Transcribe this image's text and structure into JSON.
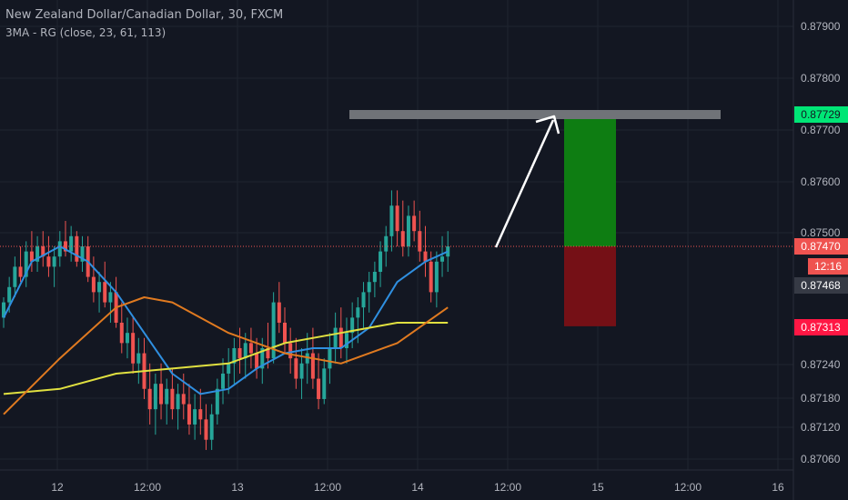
{
  "header": {
    "title": "New Zealand Dollar/Canadian Dollar, 30, FXCM",
    "indicator": "3MA - RG (close, 23, 61, 113)"
  },
  "colors": {
    "background": "#131722",
    "grid": "#1f2430",
    "axis_text": "#b2b5be",
    "candle_up": "#26a69a",
    "candle_down": "#ef5350",
    "ma_fast": "#2f8fe0",
    "ma_mid": "#e0e040",
    "ma_slow": "#e07a20",
    "target_badge": "#00e676",
    "stop_badge": "#ff1744",
    "current_badge": "#ef5350",
    "other_badge": "#363a45",
    "profit_zone": "#0e7d12",
    "loss_zone": "#751016",
    "target_line": "#707378",
    "arrow": "#ffffff"
  },
  "chart_data": {
    "type": "candlestick",
    "symbol": "NZDCAD",
    "timeframe": "30",
    "source": "FXCM",
    "x_ticks": [
      "12",
      "12:00",
      "13",
      "12:00",
      "14",
      "12:00",
      "15",
      "12:00",
      "16"
    ],
    "y_ticks": [
      "0.87900",
      "0.87800",
      "0.87700",
      "0.87600",
      "0.87500",
      "0.87240",
      "0.87180",
      "0.87120",
      "0.87060"
    ],
    "y_range": [
      0.8703,
      0.8797
    ],
    "price_labels": [
      {
        "role": "target",
        "value": "0.87729"
      },
      {
        "role": "current",
        "value": "0.87470"
      },
      {
        "role": "countdown",
        "value": "12:16"
      },
      {
        "role": "other",
        "value": "0.87468"
      },
      {
        "role": "stop",
        "value": "0.87313"
      }
    ],
    "candles": [
      [
        0.8733,
        0.8737,
        0.8731,
        0.8736
      ],
      [
        0.8736,
        0.8741,
        0.8734,
        0.8739
      ],
      [
        0.8739,
        0.8745,
        0.8737,
        0.8743
      ],
      [
        0.8743,
        0.8747,
        0.874,
        0.8741
      ],
      [
        0.8741,
        0.8748,
        0.8739,
        0.8746
      ],
      [
        0.8746,
        0.875,
        0.8742,
        0.8744
      ],
      [
        0.8744,
        0.8749,
        0.8742,
        0.8747
      ],
      [
        0.8747,
        0.875,
        0.8743,
        0.8745
      ],
      [
        0.8745,
        0.8749,
        0.8741,
        0.8743
      ],
      [
        0.8743,
        0.8747,
        0.8739,
        0.8745
      ],
      [
        0.8745,
        0.875,
        0.8743,
        0.8748
      ],
      [
        0.8748,
        0.8752,
        0.8745,
        0.8746
      ],
      [
        0.8746,
        0.8751,
        0.8744,
        0.8749
      ],
      [
        0.8749,
        0.875,
        0.8743,
        0.8744
      ],
      [
        0.8744,
        0.8749,
        0.8742,
        0.8747
      ],
      [
        0.8747,
        0.8749,
        0.874,
        0.8741
      ],
      [
        0.8741,
        0.8745,
        0.8736,
        0.8738
      ],
      [
        0.8738,
        0.8742,
        0.8734,
        0.874
      ],
      [
        0.874,
        0.8744,
        0.8735,
        0.8736
      ],
      [
        0.8736,
        0.874,
        0.8732,
        0.8738
      ],
      [
        0.8738,
        0.8741,
        0.8731,
        0.8732
      ],
      [
        0.8732,
        0.8736,
        0.8726,
        0.8728
      ],
      [
        0.8728,
        0.8733,
        0.8725,
        0.873
      ],
      [
        0.873,
        0.8733,
        0.8722,
        0.8724
      ],
      [
        0.8724,
        0.8729,
        0.872,
        0.8726
      ],
      [
        0.8726,
        0.8729,
        0.8717,
        0.8719
      ],
      [
        0.8719,
        0.8724,
        0.8712,
        0.8715
      ],
      [
        0.8715,
        0.8722,
        0.871,
        0.872
      ],
      [
        0.872,
        0.8724,
        0.8713,
        0.8716
      ],
      [
        0.8716,
        0.8721,
        0.8712,
        0.8719
      ],
      [
        0.8719,
        0.8723,
        0.8713,
        0.8715
      ],
      [
        0.8715,
        0.872,
        0.8711,
        0.8718
      ],
      [
        0.8718,
        0.8722,
        0.8713,
        0.8716
      ],
      [
        0.8716,
        0.872,
        0.871,
        0.8712
      ],
      [
        0.8712,
        0.8718,
        0.8709,
        0.8715
      ],
      [
        0.8715,
        0.8719,
        0.871,
        0.8713
      ],
      [
        0.8713,
        0.8716,
        0.8707,
        0.8709
      ],
      [
        0.8709,
        0.8716,
        0.8707,
        0.8714
      ],
      [
        0.8714,
        0.8721,
        0.8712,
        0.8719
      ],
      [
        0.8719,
        0.8725,
        0.8716,
        0.8722
      ],
      [
        0.8722,
        0.8727,
        0.8718,
        0.8724
      ],
      [
        0.8724,
        0.8729,
        0.872,
        0.8727
      ],
      [
        0.8727,
        0.8731,
        0.8722,
        0.8725
      ],
      [
        0.8725,
        0.873,
        0.8721,
        0.8728
      ],
      [
        0.8728,
        0.8731,
        0.8723,
        0.8726
      ],
      [
        0.8726,
        0.8729,
        0.8721,
        0.8723
      ],
      [
        0.8723,
        0.8729,
        0.872,
        0.8727
      ],
      [
        0.8727,
        0.8732,
        0.8723,
        0.8725
      ],
      [
        0.8725,
        0.8738,
        0.8724,
        0.8736
      ],
      [
        0.8736,
        0.874,
        0.873,
        0.8732
      ],
      [
        0.8732,
        0.8735,
        0.8726,
        0.8728
      ],
      [
        0.8728,
        0.8731,
        0.8722,
        0.8725
      ],
      [
        0.8725,
        0.8729,
        0.8719,
        0.8721
      ],
      [
        0.8721,
        0.8727,
        0.8717,
        0.8724
      ],
      [
        0.8724,
        0.873,
        0.872,
        0.8726
      ],
      [
        0.8726,
        0.8731,
        0.8719,
        0.8721
      ],
      [
        0.8721,
        0.8726,
        0.8715,
        0.8717
      ],
      [
        0.8717,
        0.8725,
        0.8716,
        0.8723
      ],
      [
        0.8723,
        0.873,
        0.872,
        0.8727
      ],
      [
        0.8727,
        0.8734,
        0.8724,
        0.8731
      ],
      [
        0.8731,
        0.8735,
        0.8725,
        0.8727
      ],
      [
        0.8727,
        0.8733,
        0.8724,
        0.873
      ],
      [
        0.873,
        0.8736,
        0.8727,
        0.8733
      ],
      [
        0.8733,
        0.8737,
        0.8728,
        0.8735
      ],
      [
        0.8735,
        0.874,
        0.8731,
        0.8738
      ],
      [
        0.8738,
        0.8742,
        0.8734,
        0.874
      ],
      [
        0.874,
        0.8744,
        0.8737,
        0.8742
      ],
      [
        0.8742,
        0.8748,
        0.8739,
        0.8746
      ],
      [
        0.8746,
        0.8751,
        0.8743,
        0.8749
      ],
      [
        0.8749,
        0.8758,
        0.8746,
        0.8755
      ],
      [
        0.8755,
        0.8758,
        0.8747,
        0.875
      ],
      [
        0.875,
        0.8756,
        0.8745,
        0.8747
      ],
      [
        0.8747,
        0.8755,
        0.8745,
        0.8753
      ],
      [
        0.8753,
        0.8756,
        0.8748,
        0.875
      ],
      [
        0.875,
        0.8754,
        0.8744,
        0.8746
      ],
      [
        0.8746,
        0.8751,
        0.8741,
        0.8744
      ],
      [
        0.8744,
        0.8746,
        0.8736,
        0.8738
      ],
      [
        0.8738,
        0.8746,
        0.8735,
        0.8744
      ],
      [
        0.8744,
        0.8749,
        0.8741,
        0.8745
      ],
      [
        0.8745,
        0.875,
        0.8742,
        0.8747
      ]
    ],
    "moving_averages": [
      {
        "name": "MA 23",
        "color": "#2f8fe0",
        "points": [
          [
            0,
            0.8733
          ],
          [
            5,
            0.8744
          ],
          [
            10,
            0.8747
          ],
          [
            15,
            0.8744
          ],
          [
            20,
            0.8738
          ],
          [
            25,
            0.873
          ],
          [
            30,
            0.8722
          ],
          [
            35,
            0.8718
          ],
          [
            40,
            0.8719
          ],
          [
            45,
            0.8723
          ],
          [
            50,
            0.8726
          ],
          [
            55,
            0.8727
          ],
          [
            60,
            0.8727
          ],
          [
            65,
            0.8731
          ],
          [
            70,
            0.874
          ],
          [
            75,
            0.8744
          ],
          [
            79,
            0.8746
          ]
        ]
      },
      {
        "name": "MA 61",
        "color": "#e0e040",
        "points": [
          [
            0,
            0.8718
          ],
          [
            10,
            0.8719
          ],
          [
            20,
            0.8722
          ],
          [
            30,
            0.8723
          ],
          [
            40,
            0.8724
          ],
          [
            50,
            0.8728
          ],
          [
            60,
            0.873
          ],
          [
            70,
            0.8732
          ],
          [
            79,
            0.8732
          ]
        ]
      },
      {
        "name": "MA 113",
        "color": "#e07a20",
        "points": [
          [
            0,
            0.8714
          ],
          [
            10,
            0.8725
          ],
          [
            20,
            0.8735
          ],
          [
            25,
            0.8737
          ],
          [
            30,
            0.8736
          ],
          [
            40,
            0.873
          ],
          [
            50,
            0.8726
          ],
          [
            60,
            0.8724
          ],
          [
            70,
            0.8728
          ],
          [
            79,
            0.8735
          ]
        ]
      }
    ],
    "annotations": {
      "target_line_price": 0.87729,
      "entry_price": 0.8747,
      "stop_price": 0.87313
    },
    "grid": true
  }
}
